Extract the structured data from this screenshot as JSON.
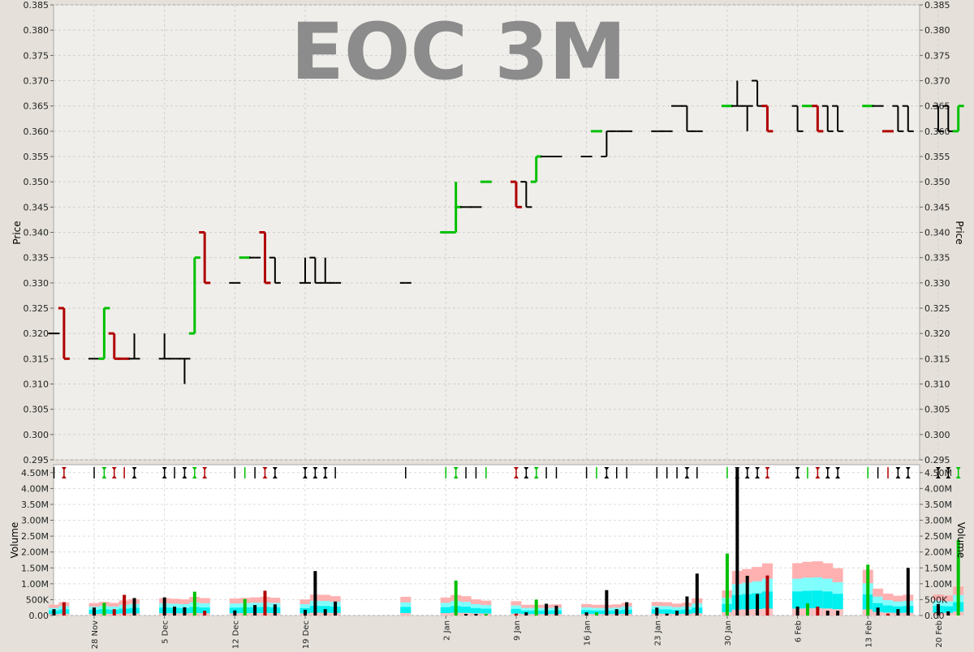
{
  "chart_data": [
    {
      "type": "ohlc",
      "title": "EOC 3M",
      "ylabel": "Price",
      "ylim": [
        0.295,
        0.385
      ],
      "yticks": [
        "0.295",
        "0.300",
        "0.305",
        "0.310",
        "0.315",
        "0.320",
        "0.325",
        "0.330",
        "0.335",
        "0.340",
        "0.345",
        "0.350",
        "0.355",
        "0.360",
        "0.365",
        "0.370",
        "0.375",
        "0.380",
        "0.385"
      ],
      "grid": true,
      "colors": {
        "up": "#00c000",
        "down": "#b00000",
        "neutral": "#000000"
      },
      "bars": [
        {
          "date": "2011-11-24",
          "o": 0.32,
          "h": 0.32,
          "l": 0.32,
          "c": 0.32,
          "dir": "neutral"
        },
        {
          "date": "2011-11-25",
          "o": 0.325,
          "h": 0.325,
          "l": 0.315,
          "c": 0.315,
          "dir": "down"
        },
        {
          "date": "2011-11-28",
          "o": 0.315,
          "h": 0.315,
          "l": 0.315,
          "c": 0.315,
          "dir": "neutral"
        },
        {
          "date": "2011-11-29",
          "o": 0.315,
          "h": 0.325,
          "l": 0.315,
          "c": 0.325,
          "dir": "up"
        },
        {
          "date": "2011-11-30",
          "o": 0.32,
          "h": 0.32,
          "l": 0.315,
          "c": 0.315,
          "dir": "down"
        },
        {
          "date": "2011-12-01",
          "o": 0.315,
          "h": 0.315,
          "l": 0.315,
          "c": 0.315,
          "dir": "down"
        },
        {
          "date": "2011-12-02",
          "o": 0.315,
          "h": 0.32,
          "l": 0.315,
          "c": 0.315,
          "dir": "neutral"
        },
        {
          "date": "2011-12-05",
          "o": 0.315,
          "h": 0.32,
          "l": 0.315,
          "c": 0.315,
          "dir": "neutral"
        },
        {
          "date": "2011-12-06",
          "o": 0.315,
          "h": 0.315,
          "l": 0.315,
          "c": 0.315,
          "dir": "neutral"
        },
        {
          "date": "2011-12-07",
          "o": 0.315,
          "h": 0.315,
          "l": 0.31,
          "c": 0.315,
          "dir": "neutral"
        },
        {
          "date": "2011-12-08",
          "o": 0.32,
          "h": 0.335,
          "l": 0.32,
          "c": 0.335,
          "dir": "up"
        },
        {
          "date": "2011-12-09",
          "o": 0.34,
          "h": 0.34,
          "l": 0.33,
          "c": 0.33,
          "dir": "down"
        },
        {
          "date": "2011-12-12",
          "o": 0.33,
          "h": 0.33,
          "l": 0.33,
          "c": 0.33,
          "dir": "neutral"
        },
        {
          "date": "2011-12-13",
          "o": 0.335,
          "h": 0.335,
          "l": 0.335,
          "c": 0.335,
          "dir": "up"
        },
        {
          "date": "2011-12-14",
          "o": 0.335,
          "h": 0.335,
          "l": 0.335,
          "c": 0.335,
          "dir": "neutral"
        },
        {
          "date": "2011-12-15",
          "o": 0.34,
          "h": 0.34,
          "l": 0.33,
          "c": 0.33,
          "dir": "down"
        },
        {
          "date": "2011-12-16",
          "o": 0.335,
          "h": 0.335,
          "l": 0.33,
          "c": 0.33,
          "dir": "neutral"
        },
        {
          "date": "2011-12-19",
          "o": 0.33,
          "h": 0.335,
          "l": 0.33,
          "c": 0.33,
          "dir": "neutral"
        },
        {
          "date": "2011-12-20",
          "o": 0.335,
          "h": 0.335,
          "l": 0.33,
          "c": 0.33,
          "dir": "neutral"
        },
        {
          "date": "2011-12-21",
          "o": 0.33,
          "h": 0.335,
          "l": 0.33,
          "c": 0.33,
          "dir": "neutral"
        },
        {
          "date": "2011-12-22",
          "o": 0.33,
          "h": 0.33,
          "l": 0.33,
          "c": 0.33,
          "dir": "neutral"
        },
        {
          "date": "2011-12-29",
          "o": 0.33,
          "h": 0.33,
          "l": 0.33,
          "c": 0.33,
          "dir": "neutral"
        },
        {
          "date": "2012-01-02",
          "o": 0.34,
          "h": 0.34,
          "l": 0.34,
          "c": 0.34,
          "dir": "up"
        },
        {
          "date": "2012-01-03",
          "o": 0.34,
          "h": 0.35,
          "l": 0.34,
          "c": 0.345,
          "dir": "up"
        },
        {
          "date": "2012-01-04",
          "o": 0.345,
          "h": 0.345,
          "l": 0.345,
          "c": 0.345,
          "dir": "neutral"
        },
        {
          "date": "2012-01-05",
          "o": 0.345,
          "h": 0.345,
          "l": 0.345,
          "c": 0.345,
          "dir": "neutral"
        },
        {
          "date": "2012-01-06",
          "o": 0.35,
          "h": 0.35,
          "l": 0.35,
          "c": 0.35,
          "dir": "up"
        },
        {
          "date": "2012-01-09",
          "o": 0.35,
          "h": 0.35,
          "l": 0.345,
          "c": 0.345,
          "dir": "down"
        },
        {
          "date": "2012-01-10",
          "o": 0.35,
          "h": 0.35,
          "l": 0.345,
          "c": 0.345,
          "dir": "neutral"
        },
        {
          "date": "2012-01-11",
          "o": 0.35,
          "h": 0.355,
          "l": 0.35,
          "c": 0.355,
          "dir": "up"
        },
        {
          "date": "2012-01-12",
          "o": 0.355,
          "h": 0.355,
          "l": 0.355,
          "c": 0.355,
          "dir": "neutral"
        },
        {
          "date": "2012-01-13",
          "o": 0.355,
          "h": 0.355,
          "l": 0.355,
          "c": 0.355,
          "dir": "neutral"
        },
        {
          "date": "2012-01-16",
          "o": 0.355,
          "h": 0.355,
          "l": 0.355,
          "c": 0.355,
          "dir": "neutral"
        },
        {
          "date": "2012-01-17",
          "o": 0.36,
          "h": 0.36,
          "l": 0.36,
          "c": 0.36,
          "dir": "up"
        },
        {
          "date": "2012-01-18",
          "o": 0.355,
          "h": 0.36,
          "l": 0.355,
          "c": 0.36,
          "dir": "neutral"
        },
        {
          "date": "2012-01-19",
          "o": 0.36,
          "h": 0.36,
          "l": 0.36,
          "c": 0.36,
          "dir": "neutral"
        },
        {
          "date": "2012-01-20",
          "o": 0.36,
          "h": 0.36,
          "l": 0.36,
          "c": 0.36,
          "dir": "neutral"
        },
        {
          "date": "2012-01-23",
          "o": 0.36,
          "h": 0.36,
          "l": 0.36,
          "c": 0.36,
          "dir": "neutral"
        },
        {
          "date": "2012-01-24",
          "o": 0.36,
          "h": 0.36,
          "l": 0.36,
          "c": 0.36,
          "dir": "neutral"
        },
        {
          "date": "2012-01-25",
          "o": 0.365,
          "h": 0.365,
          "l": 0.365,
          "c": 0.365,
          "dir": "neutral"
        },
        {
          "date": "2012-01-26",
          "o": 0.365,
          "h": 0.365,
          "l": 0.36,
          "c": 0.36,
          "dir": "neutral"
        },
        {
          "date": "2012-01-27",
          "o": 0.36,
          "h": 0.36,
          "l": 0.36,
          "c": 0.36,
          "dir": "neutral"
        },
        {
          "date": "2012-01-30",
          "o": 0.365,
          "h": 0.365,
          "l": 0.365,
          "c": 0.365,
          "dir": "up"
        },
        {
          "date": "2012-01-31",
          "o": 0.365,
          "h": 0.37,
          "l": 0.365,
          "c": 0.365,
          "dir": "neutral"
        },
        {
          "date": "2012-02-01",
          "o": 0.365,
          "h": 0.365,
          "l": 0.36,
          "c": 0.365,
          "dir": "neutral"
        },
        {
          "date": "2012-02-02",
          "o": 0.37,
          "h": 0.37,
          "l": 0.365,
          "c": 0.365,
          "dir": "neutral"
        },
        {
          "date": "2012-02-03",
          "o": 0.365,
          "h": 0.365,
          "l": 0.36,
          "c": 0.36,
          "dir": "down"
        },
        {
          "date": "2012-02-06",
          "o": 0.365,
          "h": 0.365,
          "l": 0.36,
          "c": 0.36,
          "dir": "neutral"
        },
        {
          "date": "2012-02-07",
          "o": 0.365,
          "h": 0.365,
          "l": 0.365,
          "c": 0.365,
          "dir": "up"
        },
        {
          "date": "2012-02-08",
          "o": 0.365,
          "h": 0.365,
          "l": 0.36,
          "c": 0.36,
          "dir": "down"
        },
        {
          "date": "2012-02-09",
          "o": 0.365,
          "h": 0.365,
          "l": 0.36,
          "c": 0.36,
          "dir": "neutral"
        },
        {
          "date": "2012-02-10",
          "o": 0.365,
          "h": 0.365,
          "l": 0.36,
          "c": 0.36,
          "dir": "neutral"
        },
        {
          "date": "2012-02-13",
          "o": 0.365,
          "h": 0.365,
          "l": 0.365,
          "c": 0.365,
          "dir": "up"
        },
        {
          "date": "2012-02-14",
          "o": 0.365,
          "h": 0.365,
          "l": 0.365,
          "c": 0.365,
          "dir": "neutral"
        },
        {
          "date": "2012-02-15",
          "o": 0.36,
          "h": 0.36,
          "l": 0.36,
          "c": 0.36,
          "dir": "down"
        },
        {
          "date": "2012-02-16",
          "o": 0.365,
          "h": 0.365,
          "l": 0.36,
          "c": 0.36,
          "dir": "neutral"
        },
        {
          "date": "2012-02-17",
          "o": 0.365,
          "h": 0.365,
          "l": 0.36,
          "c": 0.36,
          "dir": "neutral"
        },
        {
          "date": "2012-02-20",
          "o": 0.365,
          "h": 0.365,
          "l": 0.36,
          "c": 0.36,
          "dir": "neutral"
        },
        {
          "date": "2012-02-21",
          "o": 0.365,
          "h": 0.365,
          "l": 0.36,
          "c": 0.36,
          "dir": "neutral"
        },
        {
          "date": "2012-02-22",
          "o": 0.36,
          "h": 0.365,
          "l": 0.36,
          "c": 0.365,
          "dir": "up"
        }
      ]
    },
    {
      "type": "bar",
      "ylabel": "Volume",
      "ylim": [
        0,
        4750000
      ],
      "yticks": [
        "0.00",
        "500K",
        "1.00M",
        "1.50M",
        "2.00M",
        "2.50M",
        "3.00M",
        "3.50M",
        "4.00M",
        "4.50M"
      ],
      "xticklabels": [
        {
          "date": "2011-11-28",
          "label": "28 Nov"
        },
        {
          "date": "2011-12-05",
          "label": "5 Dec"
        },
        {
          "date": "2011-12-12",
          "label": "12 Dec"
        },
        {
          "date": "2011-12-19",
          "label": "19 Dec"
        },
        {
          "date": "2012-01-02",
          "label": "2 Jan"
        },
        {
          "date": "2012-01-09",
          "label": "9 Jan"
        },
        {
          "date": "2012-01-16",
          "label": "16 Jan"
        },
        {
          "date": "2012-01-23",
          "label": "23 Jan"
        },
        {
          "date": "2012-01-30",
          "label": "30 Jan"
        },
        {
          "date": "2012-02-06",
          "label": "6 Feb"
        },
        {
          "date": "2012-02-13",
          "label": "13 Feb"
        },
        {
          "date": "2012-02-20",
          "label": "20 Feb"
        }
      ],
      "bands_colors": {
        "high": "#ffb0b0",
        "mid": "#80ffff",
        "core": "#00f0f0",
        "low": "#ffc0c0"
      },
      "volumes": [
        {
          "date": "2011-11-24",
          "v": 200000,
          "dir": "neutral"
        },
        {
          "date": "2011-11-25",
          "v": 420000,
          "dir": "down"
        },
        {
          "date": "2011-11-28",
          "v": 250000,
          "dir": "neutral"
        },
        {
          "date": "2011-11-29",
          "v": 400000,
          "dir": "up"
        },
        {
          "date": "2011-11-30",
          "v": 200000,
          "dir": "down"
        },
        {
          "date": "2011-12-01",
          "v": 650000,
          "dir": "down"
        },
        {
          "date": "2011-12-02",
          "v": 550000,
          "dir": "neutral"
        },
        {
          "date": "2011-12-05",
          "v": 570000,
          "dir": "neutral"
        },
        {
          "date": "2011-12-06",
          "v": 280000,
          "dir": "neutral"
        },
        {
          "date": "2011-12-07",
          "v": 260000,
          "dir": "neutral"
        },
        {
          "date": "2011-12-08",
          "v": 750000,
          "dir": "up"
        },
        {
          "date": "2011-12-09",
          "v": 150000,
          "dir": "down"
        },
        {
          "date": "2011-12-12",
          "v": 160000,
          "dir": "neutral"
        },
        {
          "date": "2011-12-13",
          "v": 520000,
          "dir": "up"
        },
        {
          "date": "2011-12-14",
          "v": 330000,
          "dir": "neutral"
        },
        {
          "date": "2011-12-15",
          "v": 780000,
          "dir": "down"
        },
        {
          "date": "2011-12-16",
          "v": 350000,
          "dir": "neutral"
        },
        {
          "date": "2011-12-19",
          "v": 180000,
          "dir": "neutral"
        },
        {
          "date": "2011-12-20",
          "v": 1400000,
          "dir": "neutral"
        },
        {
          "date": "2011-12-21",
          "v": 200000,
          "dir": "neutral"
        },
        {
          "date": "2011-12-22",
          "v": 440000,
          "dir": "neutral"
        },
        {
          "date": "2011-12-29",
          "v": 0,
          "dir": "neutral"
        },
        {
          "date": "2012-01-02",
          "v": 0,
          "dir": "up"
        },
        {
          "date": "2012-01-03",
          "v": 1100000,
          "dir": "up"
        },
        {
          "date": "2012-01-04",
          "v": 50000,
          "dir": "neutral"
        },
        {
          "date": "2012-01-05",
          "v": 50000,
          "dir": "neutral"
        },
        {
          "date": "2012-01-06",
          "v": 50000,
          "dir": "up"
        },
        {
          "date": "2012-01-09",
          "v": 60000,
          "dir": "down"
        },
        {
          "date": "2012-01-10",
          "v": 100000,
          "dir": "neutral"
        },
        {
          "date": "2012-01-11",
          "v": 500000,
          "dir": "up"
        },
        {
          "date": "2012-01-12",
          "v": 370000,
          "dir": "neutral"
        },
        {
          "date": "2012-01-13",
          "v": 310000,
          "dir": "neutral"
        },
        {
          "date": "2012-01-16",
          "v": 100000,
          "dir": "neutral"
        },
        {
          "date": "2012-01-17",
          "v": 100000,
          "dir": "up"
        },
        {
          "date": "2012-01-18",
          "v": 800000,
          "dir": "neutral"
        },
        {
          "date": "2012-01-19",
          "v": 200000,
          "dir": "neutral"
        },
        {
          "date": "2012-01-20",
          "v": 420000,
          "dir": "neutral"
        },
        {
          "date": "2012-01-23",
          "v": 250000,
          "dir": "neutral"
        },
        {
          "date": "2012-01-24",
          "v": 60000,
          "dir": "neutral"
        },
        {
          "date": "2012-01-25",
          "v": 150000,
          "dir": "neutral"
        },
        {
          "date": "2012-01-26",
          "v": 600000,
          "dir": "neutral"
        },
        {
          "date": "2012-01-27",
          "v": 1320000,
          "dir": "neutral"
        },
        {
          "date": "2012-01-30",
          "v": 1950000,
          "dir": "up"
        },
        {
          "date": "2012-01-31",
          "v": 4650000,
          "dir": "neutral"
        },
        {
          "date": "2012-02-01",
          "v": 1250000,
          "dir": "neutral"
        },
        {
          "date": "2012-02-02",
          "v": 680000,
          "dir": "neutral"
        },
        {
          "date": "2012-02-03",
          "v": 1260000,
          "dir": "down"
        },
        {
          "date": "2012-02-06",
          "v": 280000,
          "dir": "neutral"
        },
        {
          "date": "2012-02-07",
          "v": 380000,
          "dir": "up"
        },
        {
          "date": "2012-02-08",
          "v": 280000,
          "dir": "down"
        },
        {
          "date": "2012-02-09",
          "v": 150000,
          "dir": "neutral"
        },
        {
          "date": "2012-02-10",
          "v": 150000,
          "dir": "neutral"
        },
        {
          "date": "2012-02-13",
          "v": 1600000,
          "dir": "up"
        },
        {
          "date": "2012-02-14",
          "v": 250000,
          "dir": "neutral"
        },
        {
          "date": "2012-02-15",
          "v": 60000,
          "dir": "down"
        },
        {
          "date": "2012-02-16",
          "v": 200000,
          "dir": "neutral"
        },
        {
          "date": "2012-02-17",
          "v": 1500000,
          "dir": "neutral"
        },
        {
          "date": "2012-02-20",
          "v": 360000,
          "dir": "neutral"
        },
        {
          "date": "2012-02-21",
          "v": 130000,
          "dir": "neutral"
        },
        {
          "date": "2012-02-22",
          "v": 2380000,
          "dir": "up"
        }
      ]
    }
  ]
}
